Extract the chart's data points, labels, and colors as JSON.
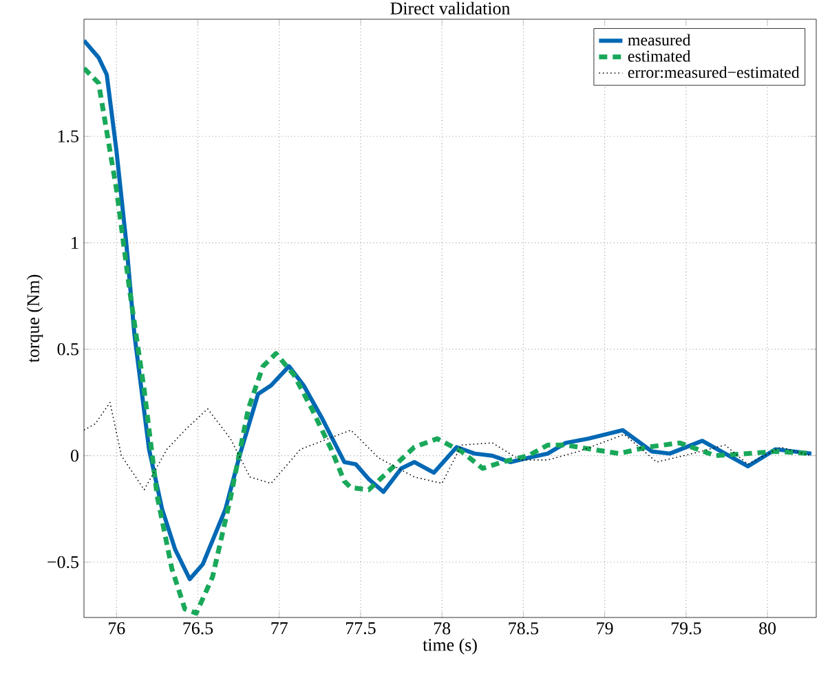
{
  "chart_data": {
    "type": "line",
    "title": "Direct validation",
    "xlabel": "time (s)",
    "ylabel": "torque (Nm)",
    "xlim": [
      75.8,
      80.3
    ],
    "ylim": [
      -0.76,
      2.05
    ],
    "xticks": [
      76,
      76.5,
      77,
      77.5,
      78,
      78.5,
      79,
      79.5,
      80
    ],
    "yticks": [
      {
        "value": -0.5,
        "label": "−0.5"
      },
      0,
      0.5,
      1,
      1.5
    ],
    "grid": true,
    "legend": "top right",
    "series": [
      {
        "name": "measured",
        "color": "#0068b4",
        "line_style": "solid",
        "x": [
          75.8,
          75.89,
          75.94,
          76.0,
          76.06,
          76.11,
          76.2,
          76.28,
          76.36,
          76.45,
          76.53,
          76.67,
          76.76,
          76.87,
          76.95,
          77.06,
          77.15,
          77.26,
          77.4,
          77.47,
          77.55,
          77.64,
          77.75,
          77.83,
          77.95,
          78.09,
          78.2,
          78.31,
          78.42,
          78.53,
          78.65,
          78.76,
          78.9,
          79.11,
          79.29,
          79.4,
          79.6,
          79.88,
          80.05,
          80.27
        ],
        "values": [
          1.95,
          1.87,
          1.79,
          1.43,
          1.0,
          0.57,
          0.03,
          -0.25,
          -0.44,
          -0.58,
          -0.51,
          -0.25,
          0.01,
          0.29,
          0.33,
          0.42,
          0.33,
          0.18,
          -0.03,
          -0.04,
          -0.11,
          -0.17,
          -0.06,
          -0.03,
          -0.08,
          0.04,
          0.01,
          0.0,
          -0.03,
          -0.01,
          0.01,
          0.06,
          0.08,
          0.12,
          0.02,
          0.01,
          0.07,
          -0.05,
          0.03,
          0.01
        ]
      },
      {
        "name": "estimated",
        "color": "#19a85a",
        "line_style": "dashed",
        "x": [
          75.8,
          75.89,
          76.0,
          76.08,
          76.17,
          76.25,
          76.34,
          76.42,
          76.49,
          76.59,
          76.7,
          76.81,
          76.9,
          76.98,
          77.09,
          77.2,
          77.32,
          77.4,
          77.44,
          77.55,
          77.69,
          77.83,
          77.97,
          78.12,
          78.25,
          78.37,
          78.53,
          78.65,
          78.76,
          78.92,
          79.09,
          79.26,
          79.46,
          79.68,
          79.88,
          80.05,
          80.27
        ],
        "values": [
          1.82,
          1.75,
          1.25,
          0.78,
          0.31,
          -0.19,
          -0.53,
          -0.72,
          -0.74,
          -0.57,
          -0.2,
          0.22,
          0.42,
          0.48,
          0.38,
          0.22,
          0.03,
          -0.12,
          -0.15,
          -0.16,
          -0.06,
          0.04,
          0.08,
          0.02,
          -0.06,
          -0.03,
          0.0,
          0.05,
          0.05,
          0.03,
          0.01,
          0.04,
          0.06,
          0.0,
          0.01,
          0.02,
          0.01
        ]
      },
      {
        "name": "error:measured−estimated",
        "color": "#000000",
        "line_style": "dotted",
        "x": [
          75.8,
          75.87,
          75.96,
          76.03,
          76.17,
          76.31,
          76.42,
          76.56,
          76.7,
          76.82,
          76.95,
          77.13,
          77.44,
          77.61,
          77.83,
          78.0,
          78.12,
          78.31,
          78.48,
          78.65,
          78.84,
          79.12,
          79.32,
          79.54,
          79.74,
          79.88,
          80.08,
          80.27
        ],
        "values": [
          0.12,
          0.15,
          0.25,
          0.0,
          -0.16,
          0.03,
          0.12,
          0.22,
          0.08,
          -0.1,
          -0.13,
          0.03,
          0.12,
          -0.01,
          -0.1,
          -0.13,
          0.05,
          0.06,
          -0.02,
          -0.02,
          0.02,
          0.1,
          -0.03,
          0.01,
          0.05,
          -0.04,
          0.04,
          0.0
        ]
      }
    ]
  }
}
